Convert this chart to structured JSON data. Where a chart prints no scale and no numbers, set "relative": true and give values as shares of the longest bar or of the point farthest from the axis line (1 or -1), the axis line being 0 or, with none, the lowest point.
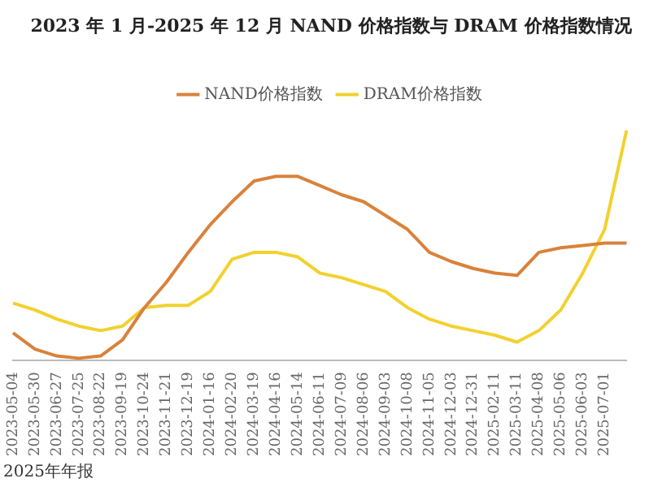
{
  "chart_data": {
    "type": "line",
    "title": "2023 年 1 月-2025 年 12 月 NAND 价格指数与 DRAM 价格指数情况",
    "categories": [
      "2023-05-04",
      "2023-05-30",
      "2023-06-27",
      "2023-07-25",
      "2023-08-22",
      "2023-09-19",
      "2023-10-24",
      "2023-11-21",
      "2023-12-19",
      "2024-01-16",
      "2024-02-20",
      "2024-03-19",
      "2024-04-16",
      "2024-05-14",
      "2024-06-11",
      "2024-07-09",
      "2024-08-06",
      "2024-09-03",
      "2024-10-08",
      "2024-11-05",
      "2024-12-03",
      "2024-12-31",
      "2025-02-11",
      "2025-03-11",
      "2025-04-08",
      "2025-05-06",
      "2025-06-03",
      "2025-07-01",
      null
    ],
    "series": [
      {
        "name": "NAND价格指数",
        "color": "#d9823b",
        "values": [
          0.12,
          0.05,
          0.02,
          0.01,
          0.02,
          0.09,
          0.23,
          0.34,
          0.47,
          0.59,
          0.69,
          0.78,
          0.8,
          0.8,
          0.76,
          0.72,
          0.69,
          0.63,
          0.57,
          0.47,
          0.43,
          0.4,
          0.38,
          0.37,
          0.47,
          0.49,
          0.5,
          0.51,
          0.51
        ]
      },
      {
        "name": "DRAM价格指数",
        "color": "#f2d12e",
        "values": [
          0.25,
          0.22,
          0.18,
          0.15,
          0.13,
          0.15,
          0.23,
          0.24,
          0.24,
          0.3,
          0.44,
          0.47,
          0.47,
          0.45,
          0.38,
          0.36,
          0.33,
          0.3,
          0.23,
          0.18,
          0.15,
          0.13,
          0.11,
          0.08,
          0.13,
          0.22,
          0.38,
          0.57,
          1
        ]
      }
    ],
    "relative": true,
    "legend": "top",
    "marker": "none",
    "line_style": "solid",
    "annotations": [
      "2025年年报"
    ]
  }
}
